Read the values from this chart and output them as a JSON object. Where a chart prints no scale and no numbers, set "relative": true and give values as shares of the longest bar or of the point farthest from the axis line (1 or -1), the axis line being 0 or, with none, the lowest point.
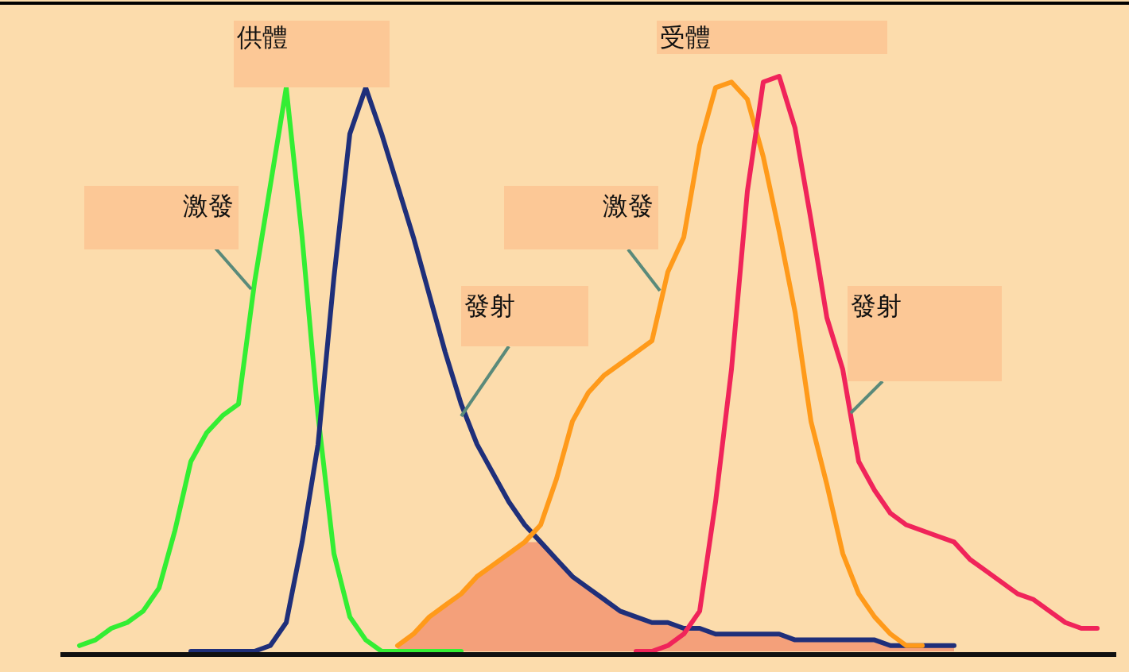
{
  "chart_data": {
    "type": "line",
    "relative": true,
    "legend": false,
    "annotations": [
      "供體",
      "受體"
    ],
    "categories": [
      null,
      null,
      null,
      null,
      null,
      null,
      null,
      null,
      null,
      null,
      null,
      null,
      null,
      null,
      null,
      null,
      null,
      null,
      null,
      null,
      null,
      null,
      null,
      null,
      null,
      null,
      null,
      null,
      null,
      null,
      null,
      null,
      null,
      null,
      null,
      null,
      null,
      null,
      null,
      null,
      null,
      null,
      null,
      null,
      null,
      null,
      null,
      null,
      null,
      null,
      null,
      null,
      null,
      null,
      null,
      null,
      null,
      null,
      null,
      null,
      null,
      null,
      null,
      null,
      null,
      null,
      null
    ],
    "series": [
      {
        "type": "area",
        "color": "#f4a07a",
        "values": [
          null,
          null,
          null,
          null,
          null,
          null,
          null,
          null,
          null,
          null,
          null,
          null,
          null,
          null,
          null,
          null,
          null,
          null,
          null,
          null,
          null,
          0.01,
          0.03,
          0.06,
          0.08,
          0.1,
          0.13,
          0.15,
          0.17,
          0.19,
          0.19,
          0.16,
          0.13,
          0.11,
          0.09,
          0.07,
          0.06,
          0.05,
          0.05,
          0.04,
          0.04,
          0.03,
          0.03,
          0.03,
          0.03,
          0.03,
          0.02,
          0.02,
          0.02,
          0.02,
          0.02,
          0.02,
          0.01,
          0.01,
          0.01,
          0.01,
          0.01,
          null,
          null,
          null,
          null,
          null,
          null,
          null,
          null,
          null,
          null
        ]
      },
      {
        "name": "激發",
        "color": "#33ee33",
        "values": [
          null,
          0.01,
          0.02,
          0.04,
          0.05,
          0.07,
          0.11,
          0.21,
          0.33,
          0.38,
          0.41,
          0.43,
          0.64,
          0.81,
          0.98,
          0.72,
          0.41,
          0.17,
          0.06,
          0.02,
          0,
          0,
          0,
          0,
          0,
          0,
          null,
          null,
          null,
          null,
          null,
          null,
          null,
          null,
          null,
          null,
          null,
          null,
          null,
          null,
          null,
          null,
          null,
          null,
          null,
          null,
          null,
          null,
          null,
          null,
          null,
          null,
          null,
          null,
          null,
          null,
          null,
          null,
          null,
          null,
          null,
          null,
          null,
          null,
          null,
          null,
          null
        ]
      },
      {
        "name": "發射",
        "color": "#1f2f7a",
        "values": [
          null,
          null,
          null,
          null,
          null,
          null,
          null,
          null,
          0,
          0,
          0,
          0,
          0,
          0.01,
          0.05,
          0.19,
          0.36,
          0.65,
          0.9,
          0.98,
          0.9,
          0.81,
          0.72,
          0.62,
          0.52,
          0.43,
          0.36,
          0.31,
          0.26,
          0.22,
          0.19,
          0.16,
          0.13,
          0.11,
          0.09,
          0.07,
          0.06,
          0.05,
          0.05,
          0.04,
          0.04,
          0.03,
          0.03,
          0.03,
          0.03,
          0.03,
          0.02,
          0.02,
          0.02,
          0.02,
          0.02,
          0.02,
          0.01,
          0.01,
          0.01,
          0.01,
          0.01,
          null,
          null,
          null,
          null,
          null,
          null,
          null,
          null,
          null,
          null
        ]
      },
      {
        "name": "激發",
        "color": "#ff9a1a",
        "values": [
          null,
          null,
          null,
          null,
          null,
          null,
          null,
          null,
          null,
          null,
          null,
          null,
          null,
          null,
          null,
          null,
          null,
          null,
          null,
          null,
          null,
          0.01,
          0.03,
          0.06,
          0.08,
          0.1,
          0.13,
          0.15,
          0.17,
          0.19,
          0.22,
          0.3,
          0.4,
          0.45,
          0.48,
          0.5,
          0.52,
          0.54,
          0.66,
          0.72,
          0.88,
          0.98,
          0.99,
          0.96,
          0.86,
          0.73,
          0.59,
          0.4,
          0.29,
          0.17,
          0.1,
          0.06,
          0.03,
          0.01,
          0.01,
          null,
          null,
          null,
          null,
          null,
          null,
          null,
          null,
          null,
          null,
          null,
          null
        ]
      },
      {
        "name": "發射",
        "color": "#f0245a",
        "values": [
          null,
          null,
          null,
          null,
          null,
          null,
          null,
          null,
          null,
          null,
          null,
          null,
          null,
          null,
          null,
          null,
          null,
          null,
          null,
          null,
          null,
          null,
          null,
          null,
          null,
          null,
          null,
          null,
          null,
          null,
          null,
          null,
          null,
          null,
          null,
          null,
          0,
          0,
          0.01,
          0.03,
          0.07,
          0.26,
          0.49,
          0.8,
          0.99,
          1,
          0.91,
          0.75,
          0.58,
          0.49,
          0.33,
          0.28,
          0.24,
          0.22,
          0.21,
          0.2,
          0.19,
          0.16,
          0.14,
          0.12,
          0.1,
          0.09,
          0.07,
          0.05,
          0.04,
          0.04,
          null
        ]
      }
    ]
  }
}
